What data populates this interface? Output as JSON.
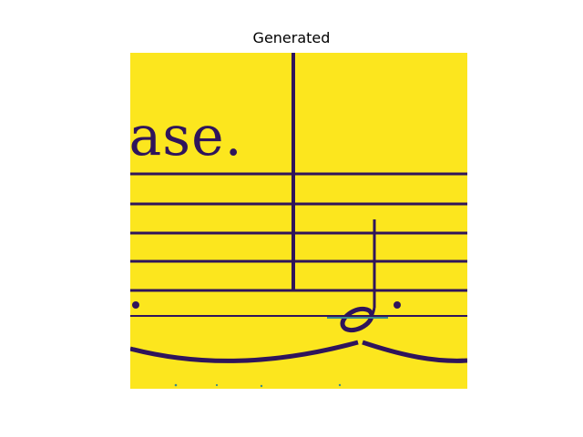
{
  "figure": {
    "title": "Generated"
  },
  "image": {
    "text_fragment": "ease.",
    "colors": {
      "background": "#fce61e",
      "ink": "#2f145b",
      "midtone": "#3d8a8a"
    }
  }
}
